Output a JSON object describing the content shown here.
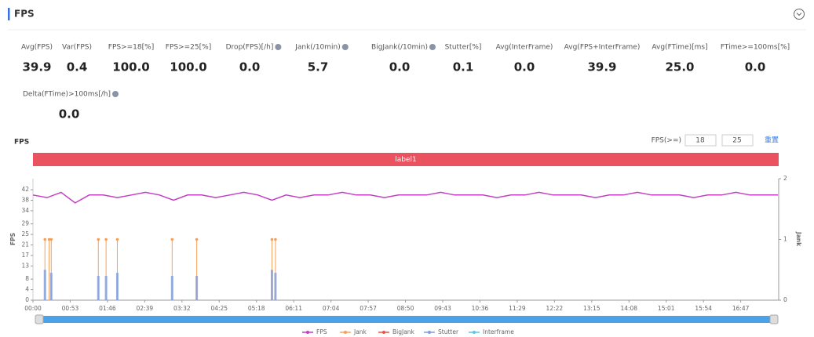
{
  "header": {
    "title": "FPS"
  },
  "stats": [
    {
      "label": "Avg(FPS)",
      "value": "39.9"
    },
    {
      "label": "Var(FPS)",
      "value": "0.4"
    },
    {
      "label": "FPS>=18[%]",
      "value": "100.0"
    },
    {
      "label": "FPS>=25[%]",
      "value": "100.0"
    },
    {
      "label": "Drop(FPS)[/h]",
      "value": "0.0",
      "help": true
    },
    {
      "label": "Jank(/10min)",
      "value": "5.7",
      "help": true
    },
    {
      "label": "BigJank(/10min)",
      "value": "0.0",
      "help": true
    },
    {
      "label": "Stutter[%]",
      "value": "0.1"
    },
    {
      "label": "Avg(InterFrame)",
      "value": "0.0"
    },
    {
      "label": "Avg(FPS+InterFrame)",
      "value": "39.9"
    },
    {
      "label": "Avg(FTime)[ms]",
      "value": "25.0"
    },
    {
      "label": "FTime>=100ms[%]",
      "value": "0.0"
    },
    {
      "label": "Delta(FTime)>100ms[/h]",
      "value": "0.0",
      "help": true
    }
  ],
  "chart_data": {
    "type": "line",
    "title": "FPS",
    "threshold_label": "FPS(>=)",
    "thresholds": [
      "18",
      "25"
    ],
    "reset": "重置",
    "band_label": "label1",
    "y_label": "FPS",
    "y2_label": "Jank",
    "xlim": [
      0,
      1061
    ],
    "xticks": [
      {
        "value": 0,
        "label": "00:00"
      },
      {
        "value": 53,
        "label": "00:53"
      },
      {
        "value": 106,
        "label": "01:46"
      },
      {
        "value": 159,
        "label": "02:39"
      },
      {
        "value": 212,
        "label": "03:32"
      },
      {
        "value": 265,
        "label": "04:25"
      },
      {
        "value": 318,
        "label": "05:18"
      },
      {
        "value": 371,
        "label": "06:11"
      },
      {
        "value": 424,
        "label": "07:04"
      },
      {
        "value": 477,
        "label": "07:57"
      },
      {
        "value": 530,
        "label": "08:50"
      },
      {
        "value": 583,
        "label": "09:43"
      },
      {
        "value": 636,
        "label": "10:36"
      },
      {
        "value": 689,
        "label": "11:29"
      },
      {
        "value": 742,
        "label": "12:22"
      },
      {
        "value": 795,
        "label": "13:15"
      },
      {
        "value": 848,
        "label": "14:08"
      },
      {
        "value": 901,
        "label": "15:01"
      },
      {
        "value": 954,
        "label": "15:54"
      },
      {
        "value": 1007,
        "label": "16:47"
      }
    ],
    "ylim": [
      0,
      46.2
    ],
    "yticks": [
      0,
      4,
      8,
      13,
      17,
      21,
      25,
      29,
      34,
      38,
      42
    ],
    "y2lim": [
      0,
      2
    ],
    "y2ticks": [
      0,
      1,
      2
    ],
    "series": [
      {
        "name": "FPS",
        "color": "#c43fc4",
        "x": [
          0,
          20,
          40,
          60,
          80,
          100,
          120,
          140,
          160,
          180,
          200,
          220,
          240,
          260,
          280,
          300,
          320,
          340,
          360,
          380,
          400,
          420,
          440,
          460,
          480,
          500,
          520,
          540,
          560,
          580,
          600,
          620,
          640,
          660,
          680,
          700,
          720,
          740,
          760,
          780,
          800,
          820,
          840,
          860,
          880,
          900,
          920,
          940,
          960,
          980,
          1000,
          1020,
          1040,
          1060
        ],
        "values": [
          40,
          39,
          41,
          37,
          40,
          40,
          39,
          40,
          41,
          40,
          38,
          40,
          40,
          39,
          40,
          41,
          40,
          38,
          40,
          39,
          40,
          40,
          41,
          40,
          40,
          39,
          40,
          40,
          40,
          41,
          40,
          40,
          40,
          39,
          40,
          40,
          41,
          40,
          40,
          40,
          39,
          40,
          40,
          41,
          40,
          40,
          40,
          39,
          40,
          40,
          41,
          40,
          40,
          40
        ]
      },
      {
        "name": "Jank",
        "color": "#f5a05a",
        "axis": "y2",
        "x": [
          17,
          23,
          26,
          93,
          104,
          120,
          198,
          233,
          340,
          345
        ],
        "values": [
          1,
          1,
          1,
          1,
          1,
          1,
          1,
          1,
          1,
          1
        ]
      },
      {
        "name": "BigJank",
        "color": "#e6554a",
        "axis": "y2",
        "x": [],
        "values": []
      },
      {
        "name": "Stutter",
        "color": "#7f9ee0",
        "axis": "y2",
        "x": [
          17,
          26,
          93,
          104,
          120,
          198,
          233,
          340,
          345
        ],
        "values": [
          0.5,
          0.45,
          0.4,
          0.4,
          0.45,
          0.4,
          0.4,
          0.5,
          0.45
        ]
      },
      {
        "name": "Interframe",
        "color": "#5bc8e6",
        "axis": "y2",
        "x": [],
        "values": []
      }
    ]
  }
}
